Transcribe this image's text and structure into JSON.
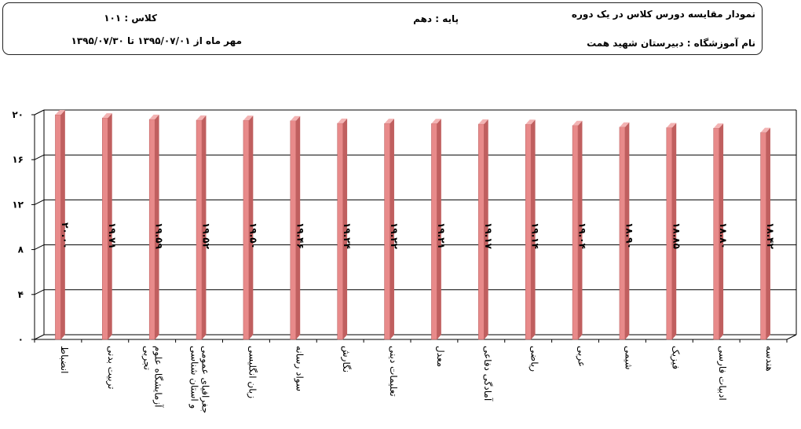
{
  "header": {
    "title": "نمودار مقایسه دورس کلاس  در یک دوره",
    "grade": "پایه :  دهم",
    "class": "کلاس :  ۱۰۱",
    "school": "نام آموزشگاه :  دبیرستان شهید همت",
    "period": "مهر ماه   از  ۱۳۹۵/۰۷/۰۱ تا ۱۳۹۵/۰۷/۳۰"
  },
  "chart_data": {
    "type": "bar",
    "categories": [
      "انضباط",
      "تربیت بدنی",
      "آزمایشگاه علوم\nتجربی",
      "جغرافیای عمومی\nو استان شناسی",
      "زبان انگلیسی",
      "سواد رسانه",
      "نگارش",
      "تعلیمات دینی",
      "معدل",
      "آمادگی دفاعی",
      "ریاضی",
      "عربی",
      "شیمی",
      "فیزیک",
      "ادبیات فارسی",
      "هندسه"
    ],
    "values": [
      20.0,
      19.71,
      19.59,
      19.52,
      19.5,
      19.46,
      19.24,
      19.22,
      19.21,
      19.17,
      19.14,
      19.04,
      18.9,
      18.85,
      18.8,
      18.42
    ],
    "data_labels": [
      "۲۰.۰۰",
      "۱۹.۷۱",
      "۱۹.۵۹",
      "۱۹.۵۲",
      "۱۹.۵۰",
      "۱۹.۴۶",
      "۱۹.۲۴",
      "۱۹.۲۲",
      "۱۹.۲۱",
      "۱۹.۱۷",
      "۱۹.۱۴",
      "۱۹.۰۴",
      "۱۸.۹۰",
      "۱۸.۸۵",
      "۱۸.۸۰",
      "۱۸.۴۲"
    ],
    "yticks": [
      0,
      4,
      8,
      12,
      16,
      20
    ],
    "ytick_labels": [
      "۰",
      "۴",
      "۸",
      "۱۲",
      "۱۶",
      "۲۰"
    ],
    "ylim": [
      0,
      20
    ],
    "grid": true,
    "bar_color": "#e88a8a",
    "bar_top_color": "#f3b3b3",
    "bar_side_color": "#c05f5f",
    "grid_color": "#000000"
  }
}
